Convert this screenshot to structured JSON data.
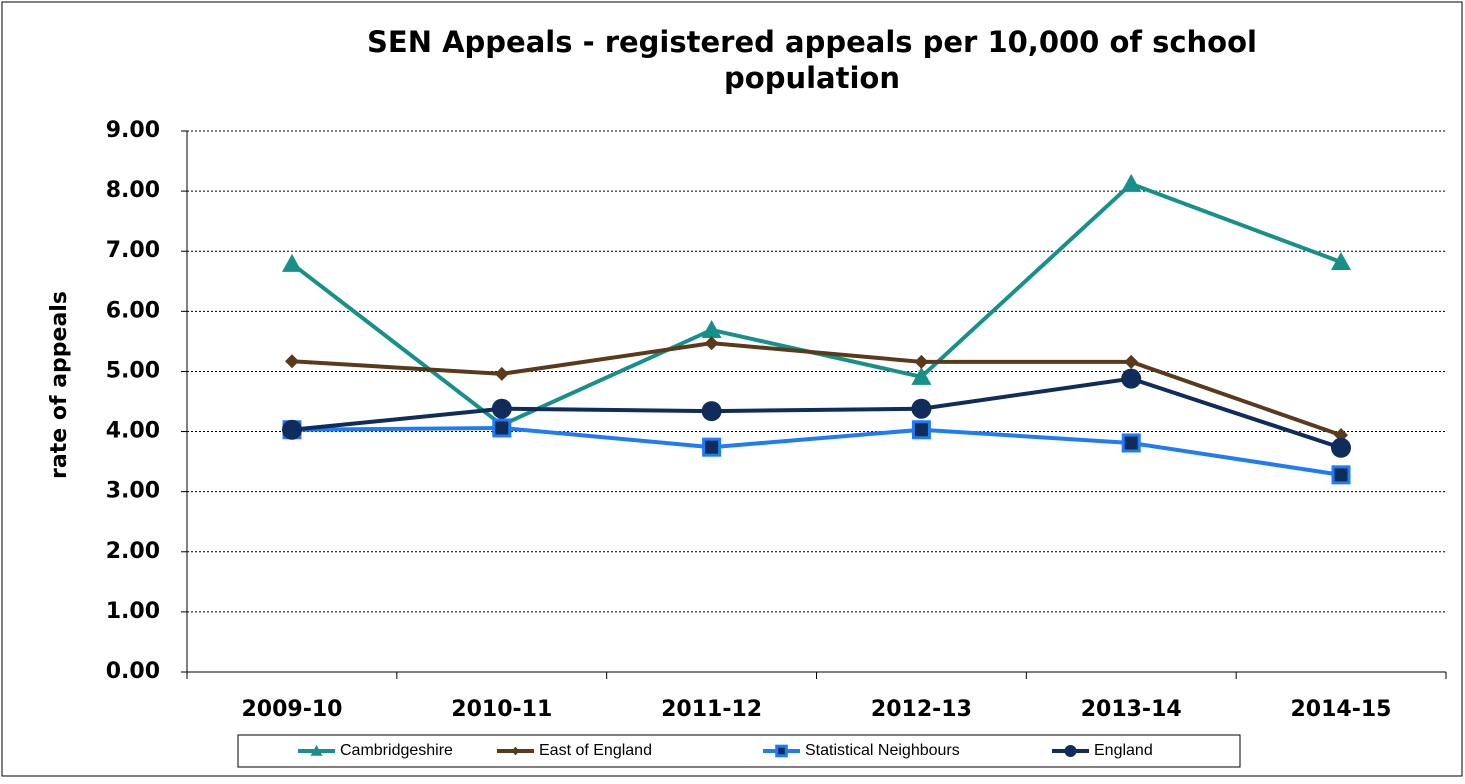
{
  "chart_data": {
    "type": "line",
    "title": "SEN Appeals - registered appeals per 10,000 of school population",
    "y_label": "rate of appeals",
    "categories": [
      "2009-10",
      "2010-11",
      "2011-12",
      "2012-13",
      "2013-14",
      "2014-15"
    ],
    "series": [
      {
        "name": "Cambridgeshire",
        "color": "#17908a",
        "marker": "triangle",
        "values": [
          6.79,
          4.11,
          5.69,
          4.91,
          8.12,
          6.82
        ]
      },
      {
        "name": "East of England",
        "color": "#5a3a1a",
        "marker": "diamond",
        "values": [
          5.17,
          4.96,
          5.47,
          5.16,
          5.16,
          3.94
        ]
      },
      {
        "name": "Statistical Neighbours",
        "color": "#1f7cf5",
        "marker": "square",
        "values": [
          4.03,
          4.06,
          3.74,
          4.03,
          3.81,
          3.28
        ]
      },
      {
        "name": "England",
        "color": "#0f2c5a",
        "marker": "circle",
        "values": [
          4.03,
          4.38,
          4.34,
          4.38,
          4.88,
          3.73
        ]
      }
    ],
    "ylim": [
      0,
      9
    ],
    "yticks": [
      {
        "value": 0,
        "label": "0.00"
      },
      {
        "value": 1,
        "label": "1.00"
      },
      {
        "value": 2,
        "label": "2.00"
      },
      {
        "value": 3,
        "label": "3.00"
      },
      {
        "value": 4,
        "label": "4.00"
      },
      {
        "value": 5,
        "label": "5.00"
      },
      {
        "value": 6,
        "label": "6.00"
      },
      {
        "value": 7,
        "label": "7.00"
      },
      {
        "value": 8,
        "label": "8.00"
      },
      {
        "value": 9,
        "label": "9.00"
      }
    ],
    "grid": true,
    "legend": "bottom"
  }
}
